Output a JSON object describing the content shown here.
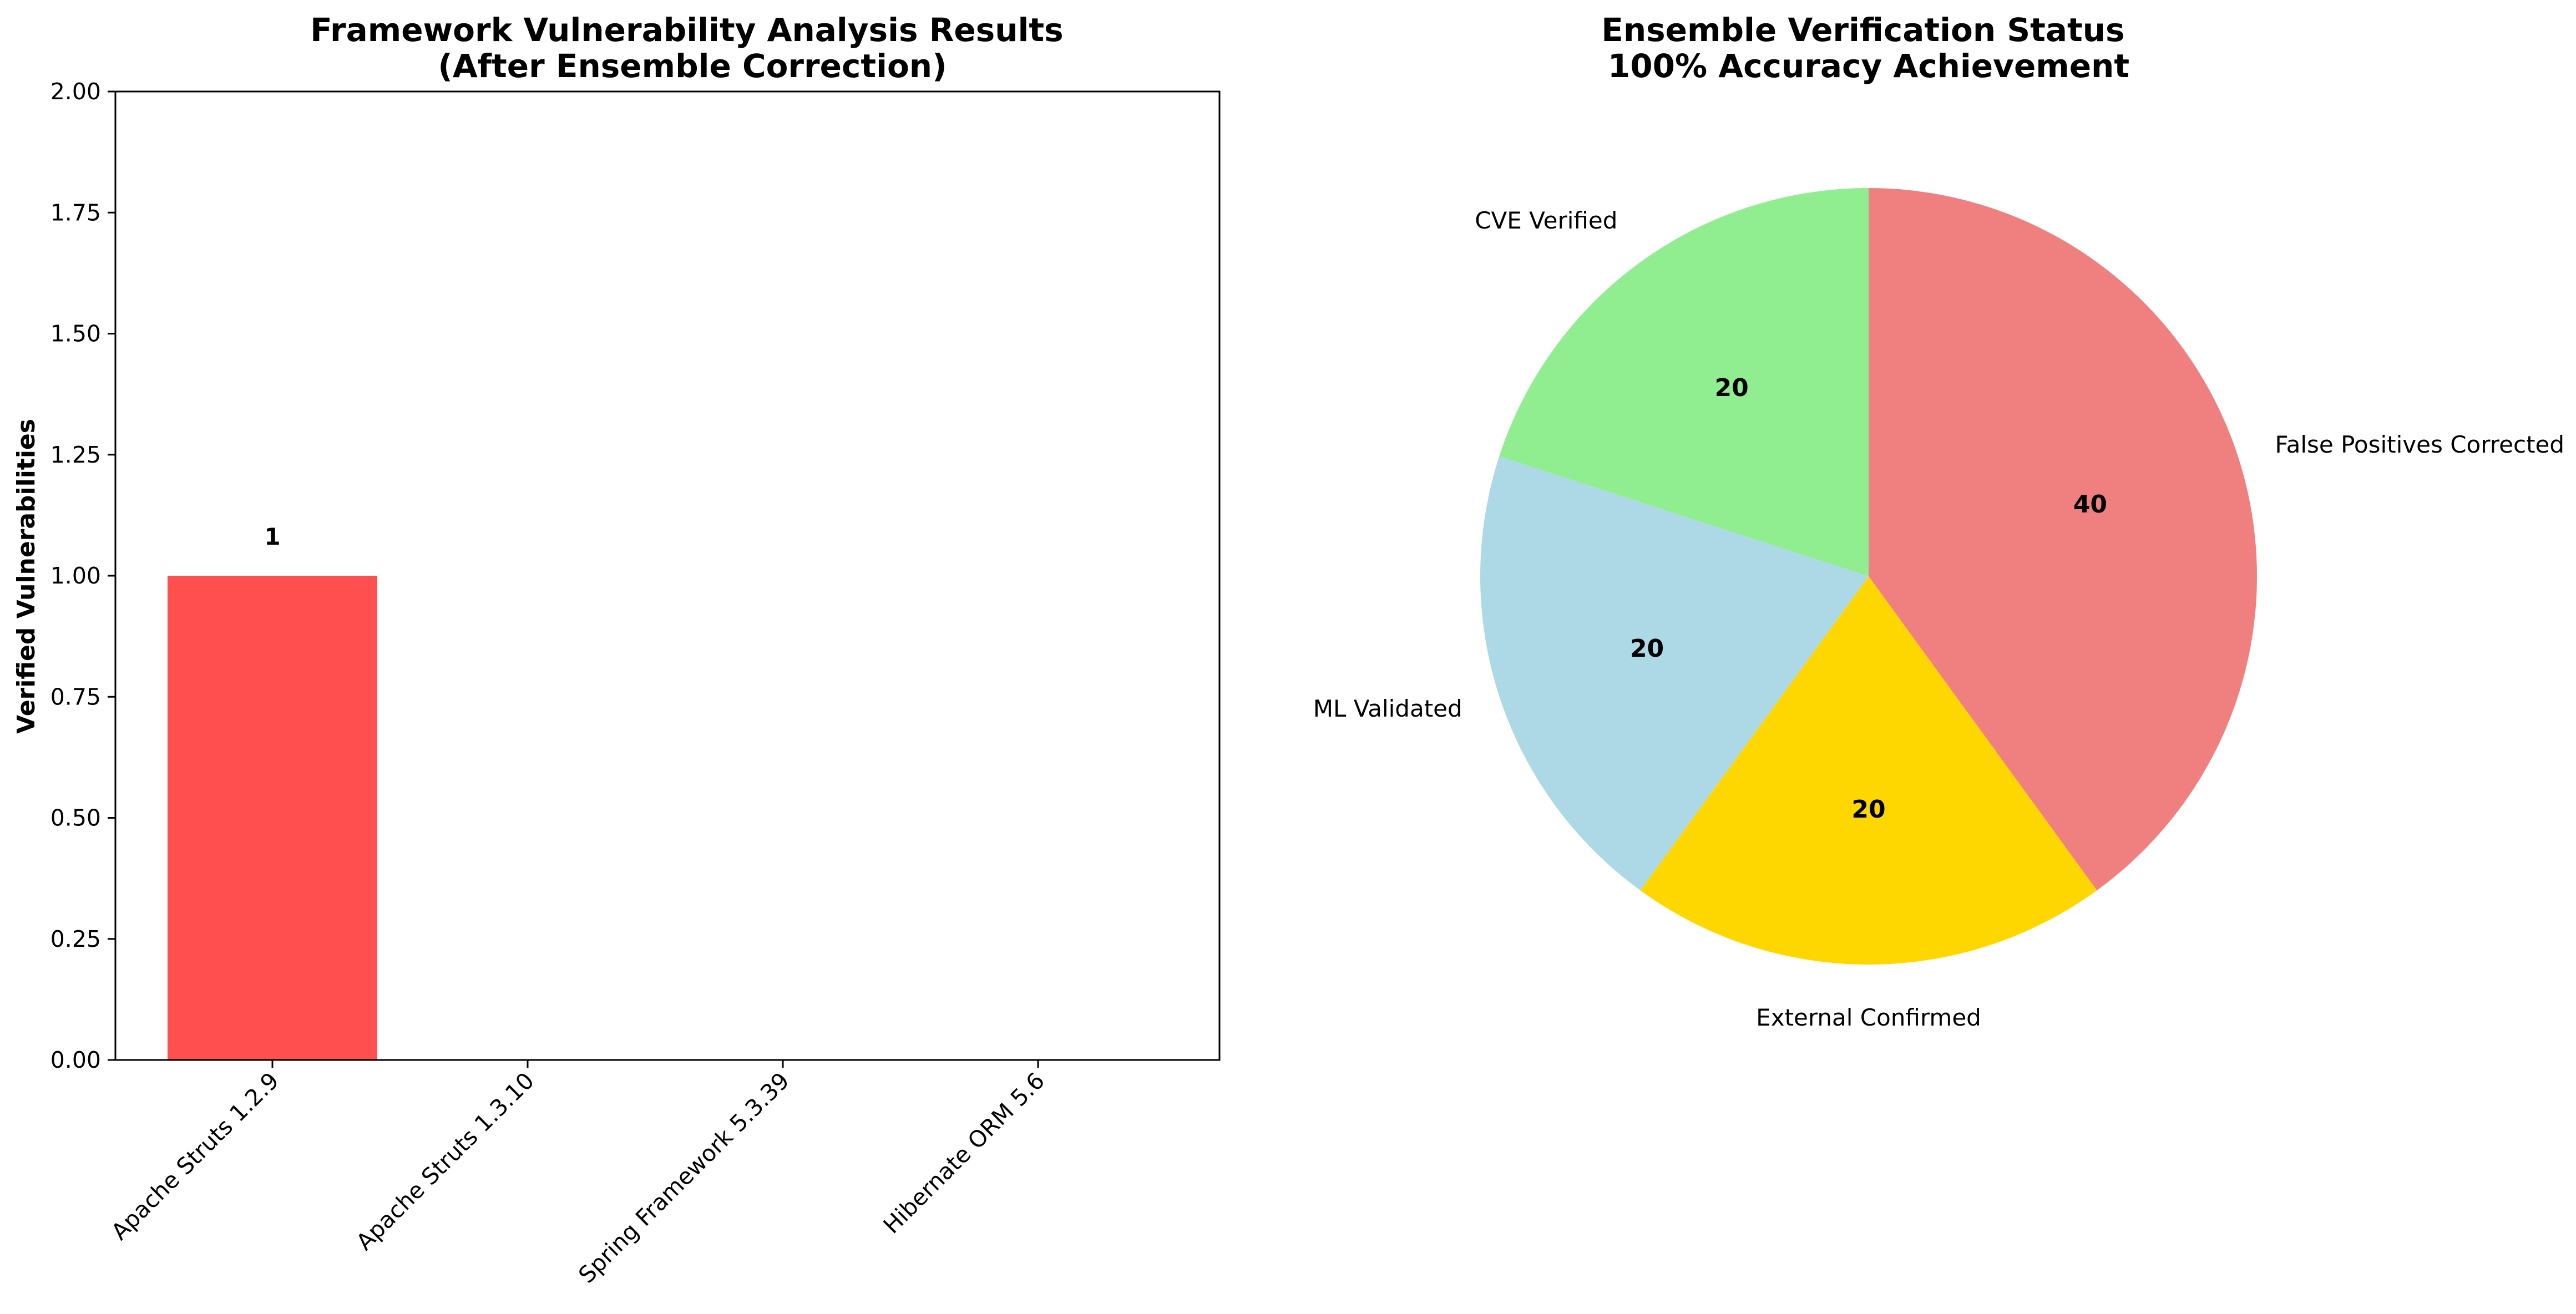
{
  "chart_data": [
    {
      "type": "bar",
      "title": "Framework Vulnerability Analysis Results\n(After Ensemble Correction)",
      "xlabel": "",
      "ylabel": "Verified Vulnerabilities",
      "categories": [
        "Apache Struts 1.2.9",
        "Apache Struts 1.3.10",
        "Spring Framework 5.3.39",
        "Hibernate ORM 5.6"
      ],
      "values": [
        1,
        0,
        0,
        0
      ],
      "data_labels": [
        "1",
        "",
        "",
        ""
      ],
      "ylim": [
        0,
        2
      ],
      "yticks": [
        "0.00",
        "0.25",
        "0.50",
        "0.75",
        "1.00",
        "1.25",
        "1.50",
        "1.75",
        "2.00"
      ],
      "colors": [
        "#ff4f4f",
        "#ff4f4f",
        "#ff4f4f",
        "#ff4f4f"
      ],
      "grid": false
    },
    {
      "type": "pie",
      "title": "Ensemble Verification Status\n100% Accuracy Achievement",
      "labels": [
        "False Positives Corrected",
        "External Confirmed",
        "ML Validated",
        "CVE Verified"
      ],
      "values": [
        40,
        20,
        20,
        20
      ],
      "pct_labels": [
        "40",
        "20",
        "20",
        "20"
      ],
      "colors": [
        "#f08080",
        "#ffd700",
        "#add8e6",
        "#90ee90"
      ],
      "start_angle_deg": 90,
      "direction": "clockwise"
    }
  ]
}
